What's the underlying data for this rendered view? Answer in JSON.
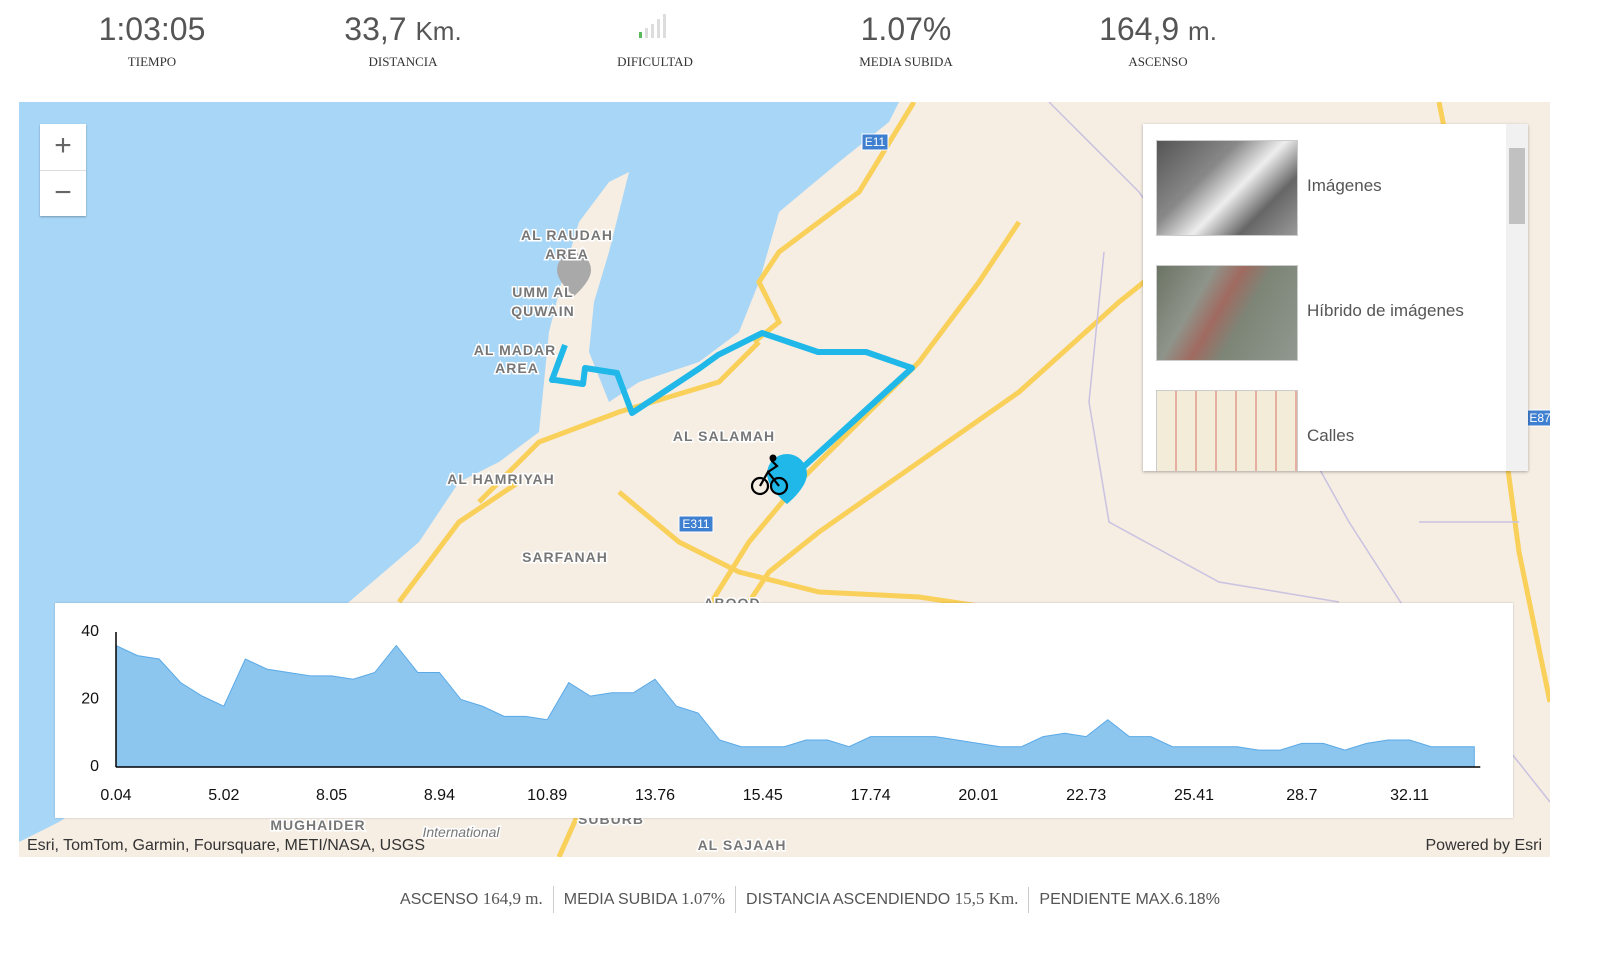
{
  "stats": [
    {
      "value": "1:03:05",
      "label": "TIEMPO"
    },
    {
      "value": "33,7",
      "unit": "Km.",
      "label": "DISTANCIA"
    },
    {
      "label": "DIFICULTAD"
    },
    {
      "value": "1.07%",
      "label": "MEDIA SUBIDA"
    },
    {
      "value": "164,9",
      "unit": "m.",
      "label": "ASCENSO"
    }
  ],
  "map": {
    "places": [
      "AL RAUDAH",
      "AREA",
      "UMM AL",
      "QUWAIN",
      "AL MADAR",
      "AREA",
      "AL SALAMAH",
      "AL HAMRIYAH",
      "SARFANAH",
      "MUGHAIDER",
      "AL SAJAAH",
      "International",
      "SUBURB",
      "ABOOD"
    ],
    "roads": [
      "E11",
      "E311",
      "E87"
    ],
    "attribution": "Esri, TomTom, Garmin, Foursquare, METI/NASA, USGS",
    "powered": "Powered by Esri",
    "basemaps": [
      "Imágenes",
      "Híbrido de imágenes",
      "Calles"
    ]
  },
  "chart_data": {
    "type": "area",
    "categories": [
      0.04,
      null,
      null,
      null,
      null,
      5.02,
      null,
      null,
      null,
      null,
      8.05,
      null,
      null,
      null,
      null,
      8.94,
      null,
      null,
      null,
      null,
      10.89,
      null,
      null,
      null,
      null,
      13.76,
      null,
      null,
      null,
      null,
      15.45,
      null,
      null,
      null,
      null,
      17.74,
      null,
      null,
      null,
      null,
      20.01,
      null,
      null,
      null,
      null,
      22.73,
      null,
      null,
      null,
      null,
      25.41,
      null,
      null,
      null,
      null,
      28.7,
      null,
      null,
      null,
      null,
      32.11,
      null,
      null,
      null
    ],
    "values": [
      36,
      33,
      32,
      25,
      21,
      18,
      32,
      29,
      28,
      27,
      27,
      26,
      28,
      36,
      28,
      28,
      20,
      18,
      15,
      15,
      14,
      25,
      21,
      22,
      22,
      26,
      18,
      16,
      8,
      6,
      6,
      6,
      8,
      8,
      6,
      9,
      9,
      9,
      9,
      8,
      7,
      6,
      6,
      9,
      10,
      9,
      14,
      9,
      9,
      6,
      6,
      6,
      6,
      5,
      5,
      7,
      7,
      5,
      7,
      8,
      8,
      6,
      6,
      6
    ],
    "color": "#8cc6ef",
    "ylim": [
      0,
      40
    ],
    "yticks": [
      0,
      20,
      40
    ]
  },
  "summary": [
    {
      "label": "ASCENSO",
      "value": "164,9 m."
    },
    {
      "label": "MEDIA SUBIDA",
      "value": "1.07%"
    },
    {
      "label": "DISTANCIA ASCENDIENDO",
      "value": "15,5 Km."
    },
    {
      "label": "PENDIENTE MAX.",
      "value": "6.18%"
    }
  ]
}
